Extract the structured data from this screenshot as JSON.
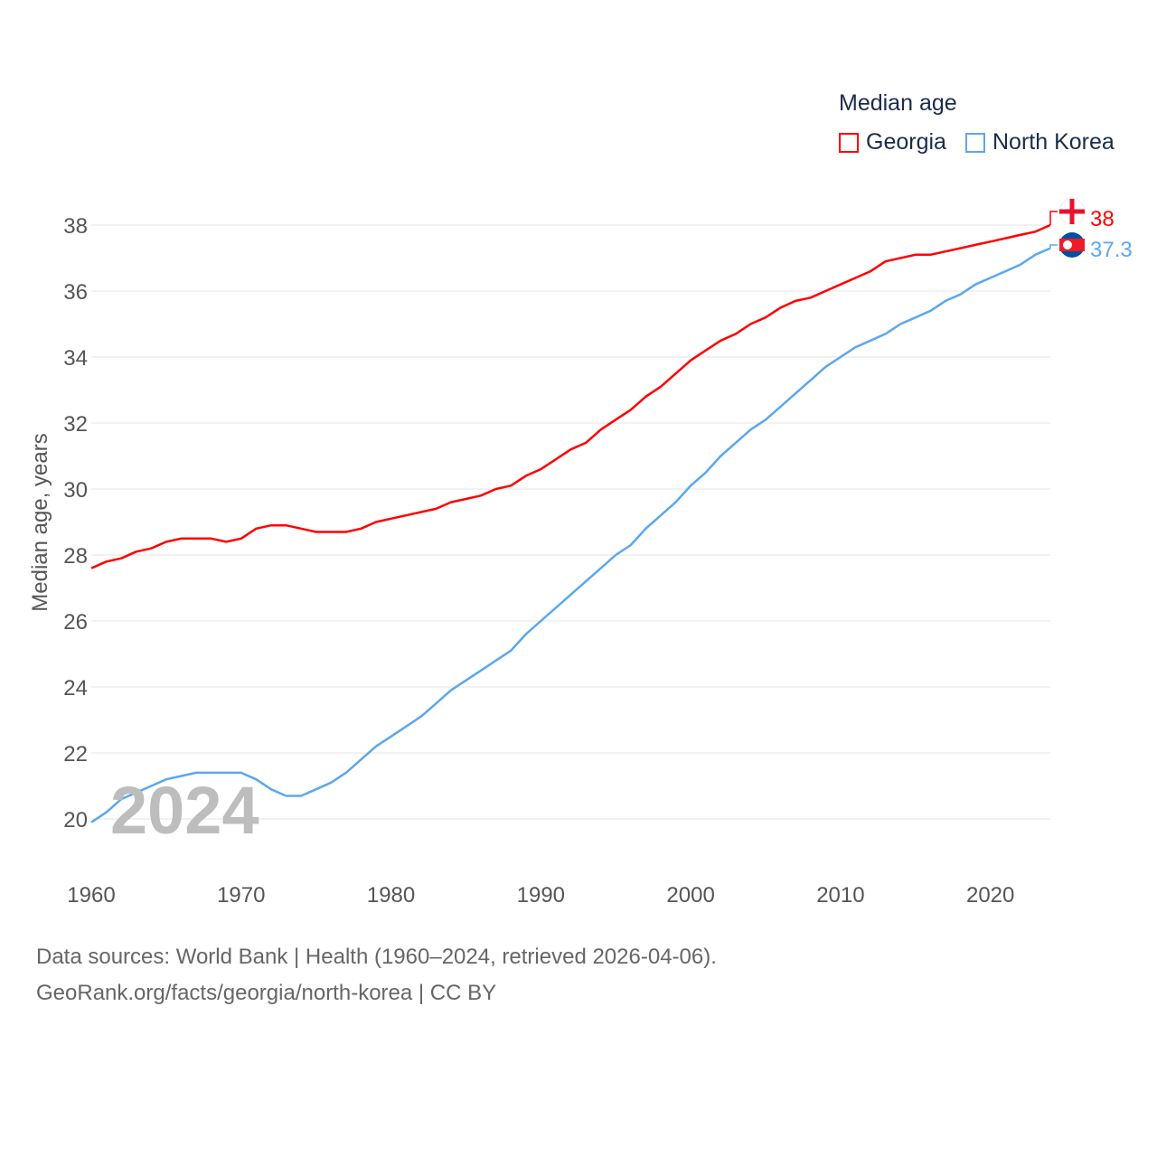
{
  "chart_data": {
    "type": "line",
    "title": "Median age",
    "xlabel": "",
    "ylabel": "Median age, years",
    "xlim": [
      1960,
      2024
    ],
    "ylim": [
      19,
      39
    ],
    "yticks": [
      20,
      22,
      24,
      26,
      28,
      30,
      32,
      34,
      36,
      38
    ],
    "xticks": [
      1960,
      1970,
      1980,
      1990,
      2000,
      2010,
      2020
    ],
    "grid": true,
    "legend_position": "top-right",
    "watermark_year": "2024",
    "x": [
      1960,
      1961,
      1962,
      1963,
      1964,
      1965,
      1966,
      1967,
      1968,
      1969,
      1970,
      1971,
      1972,
      1973,
      1974,
      1975,
      1976,
      1977,
      1978,
      1979,
      1980,
      1981,
      1982,
      1983,
      1984,
      1985,
      1986,
      1987,
      1988,
      1989,
      1990,
      1991,
      1992,
      1993,
      1994,
      1995,
      1996,
      1997,
      1998,
      1999,
      2000,
      2001,
      2002,
      2003,
      2004,
      2005,
      2006,
      2007,
      2008,
      2009,
      2010,
      2011,
      2012,
      2013,
      2014,
      2015,
      2016,
      2017,
      2018,
      2019,
      2020,
      2021,
      2022,
      2023,
      2024
    ],
    "series": [
      {
        "name": "Georgia",
        "color": "#ff0000",
        "end_label": "38",
        "values": [
          27.6,
          27.8,
          27.9,
          28.1,
          28.2,
          28.4,
          28.5,
          28.5,
          28.5,
          28.4,
          28.5,
          28.8,
          28.9,
          28.9,
          28.8,
          28.7,
          28.7,
          28.7,
          28.8,
          29.0,
          29.1,
          29.2,
          29.3,
          29.4,
          29.6,
          29.7,
          29.8,
          30.0,
          30.1,
          30.4,
          30.6,
          30.9,
          31.2,
          31.4,
          31.8,
          32.1,
          32.4,
          32.8,
          33.1,
          33.5,
          33.9,
          34.2,
          34.5,
          34.7,
          35.0,
          35.2,
          35.5,
          35.7,
          35.8,
          36.0,
          36.2,
          36.4,
          36.6,
          36.9,
          37.0,
          37.1,
          37.1,
          37.2,
          37.3,
          37.4,
          37.5,
          37.6,
          37.7,
          37.8,
          38.0
        ]
      },
      {
        "name": "North Korea",
        "color": "#5ba7ee",
        "end_label": "37.3",
        "values": [
          19.9,
          20.2,
          20.6,
          20.8,
          21.0,
          21.2,
          21.3,
          21.4,
          21.4,
          21.4,
          21.4,
          21.2,
          20.9,
          20.7,
          20.7,
          20.9,
          21.1,
          21.4,
          21.8,
          22.2,
          22.5,
          22.8,
          23.1,
          23.5,
          23.9,
          24.2,
          24.5,
          24.8,
          25.1,
          25.6,
          26.0,
          26.4,
          26.8,
          27.2,
          27.6,
          28.0,
          28.3,
          28.8,
          29.2,
          29.6,
          30.1,
          30.5,
          31.0,
          31.4,
          31.8,
          32.1,
          32.5,
          32.9,
          33.3,
          33.7,
          34.0,
          34.3,
          34.5,
          34.7,
          35.0,
          35.2,
          35.4,
          35.7,
          35.9,
          36.2,
          36.4,
          36.6,
          36.8,
          37.1,
          37.3
        ]
      }
    ]
  },
  "footer": {
    "line1": "Data sources: World Bank | Health (1960–2024, retrieved 2026-04-06).",
    "line2": "GeoRank.org/facts/georgia/north-korea | CC BY"
  }
}
